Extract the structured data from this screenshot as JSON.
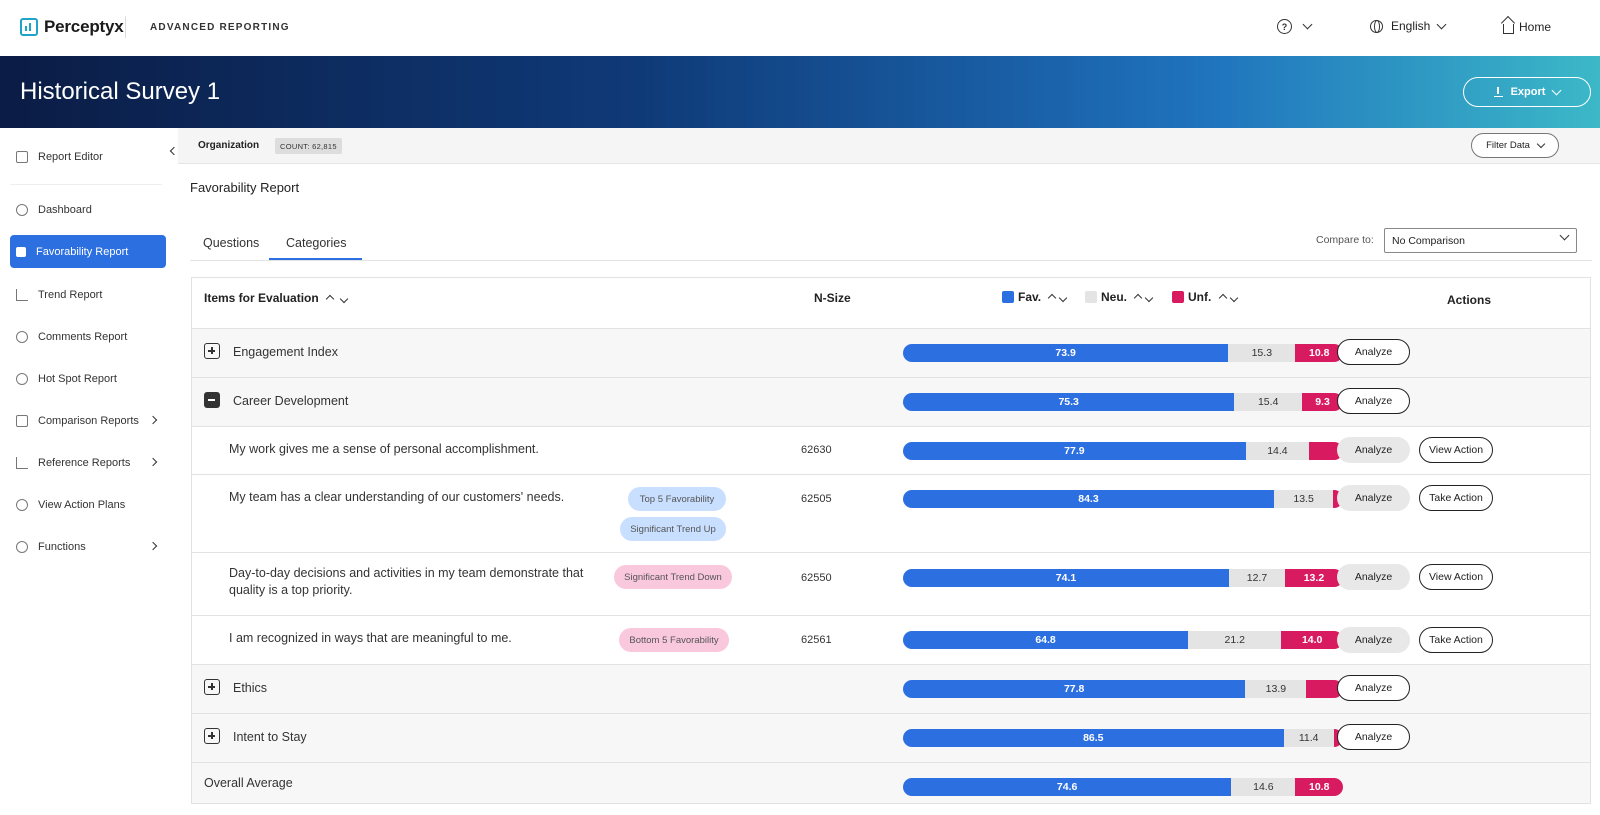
{
  "brand": {
    "logo_text": "Perceptyx",
    "app_name": "ADVANCED REPORTING"
  },
  "topnav": {
    "help_icon": "?",
    "language": "English",
    "home": "Home"
  },
  "banner": {
    "title": "Historical Survey 1",
    "export_label": "Export"
  },
  "sidebar": {
    "items": [
      {
        "label": "Report Editor",
        "icon": "edit-icon"
      },
      {
        "label": "Dashboard",
        "icon": "dashboard-icon"
      },
      {
        "label": "Favorability Report",
        "icon": "thumbs-up-icon",
        "active": true
      },
      {
        "label": "Trend Report",
        "icon": "trend-icon"
      },
      {
        "label": "Comments Report",
        "icon": "comments-icon"
      },
      {
        "label": "Hot Spot Report",
        "icon": "target-icon"
      },
      {
        "label": "Comparison Reports",
        "icon": "scale-icon",
        "submenu": true
      },
      {
        "label": "Reference Reports",
        "icon": "chart-icon",
        "submenu": true
      },
      {
        "label": "View Action Plans",
        "icon": "check-circle-icon"
      },
      {
        "label": "Functions",
        "icon": "gear-icon",
        "submenu": true
      }
    ]
  },
  "filterbar": {
    "org_label": "Organization",
    "count": "COUNT: 62,815",
    "filter_label": "Filter Data"
  },
  "report": {
    "title": "Favorability Report",
    "tabs": [
      "Questions",
      "Categories"
    ],
    "active_tab": "Categories",
    "compare_label": "Compare to:",
    "compare_value": "No Comparison"
  },
  "table": {
    "headers": {
      "items": "Items for Evaluation",
      "nsize": "N-Size",
      "fav": "Fav.",
      "neu": "Neu.",
      "unf": "Unf.",
      "actions": "Actions"
    },
    "colors": {
      "fav": "#2c6fe0",
      "neu": "#e4e4e4",
      "unf": "#d81b60"
    },
    "rows": [
      {
        "type": "category",
        "label": "Engagement Index",
        "expanded": false,
        "fav": 73.9,
        "neu": 15.3,
        "unf": 10.8,
        "fav_label": "73.9",
        "neu_label": "15.3",
        "unf_label": "10.8",
        "action1": "Analyze"
      },
      {
        "type": "category",
        "label": "Career Development",
        "expanded": true,
        "fav": 75.3,
        "neu": 15.4,
        "unf": 9.3,
        "fav_label": "75.3",
        "neu_label": "15.4",
        "unf_label": "9.3",
        "action1": "Analyze"
      },
      {
        "type": "question",
        "label": "My work gives me a sense of personal accomplishment.",
        "nsize": "62630",
        "fav": 77.9,
        "neu": 14.4,
        "unf": 7.7,
        "fav_label": "77.9",
        "neu_label": "14.4",
        "unf_label": "",
        "action1": "Analyze",
        "action2": "View Action"
      },
      {
        "type": "question",
        "label": "My team has a clear understanding of our customers' needs.",
        "nsize": "62505",
        "badges": [
          "Top 5 Favorability",
          "Significant Trend Up"
        ],
        "fav": 84.3,
        "neu": 13.5,
        "unf": 2.2,
        "fav_label": "84.3",
        "neu_label": "13.5",
        "unf_label": "",
        "action1": "Analyze",
        "action2": "Take Action"
      },
      {
        "type": "question",
        "label": "Day-to-day decisions and activities in my team demonstrate that quality is a top priority.",
        "nsize": "62550",
        "badges": [
          "Significant Trend Down"
        ],
        "fav": 74.1,
        "neu": 12.7,
        "unf": 13.2,
        "fav_label": "74.1",
        "neu_label": "12.7",
        "unf_label": "13.2",
        "action1": "Analyze",
        "action2": "View Action"
      },
      {
        "type": "question",
        "label": "I am recognized in ways that are meaningful to me.",
        "nsize": "62561",
        "badges": [
          "Bottom 5 Favorability"
        ],
        "fav": 64.8,
        "neu": 21.2,
        "unf": 14.0,
        "fav_label": "64.8",
        "neu_label": "21.2",
        "unf_label": "14.0",
        "action1": "Analyze",
        "action2": "Take Action"
      },
      {
        "type": "category",
        "label": "Ethics",
        "expanded": false,
        "fav": 77.8,
        "neu": 13.9,
        "unf": 8.3,
        "fav_label": "77.8",
        "neu_label": "13.9",
        "unf_label": "",
        "action1": "Analyze"
      },
      {
        "type": "category",
        "label": "Intent to Stay",
        "expanded": false,
        "fav": 86.5,
        "neu": 11.4,
        "unf": 2.1,
        "fav_label": "86.5",
        "neu_label": "11.4",
        "unf_label": "",
        "action1": "Analyze"
      },
      {
        "type": "overall",
        "label": "Overall Average",
        "fav": 74.6,
        "neu": 14.6,
        "unf": 10.8,
        "fav_label": "74.6",
        "neu_label": "14.6",
        "unf_label": "10.8"
      }
    ]
  }
}
